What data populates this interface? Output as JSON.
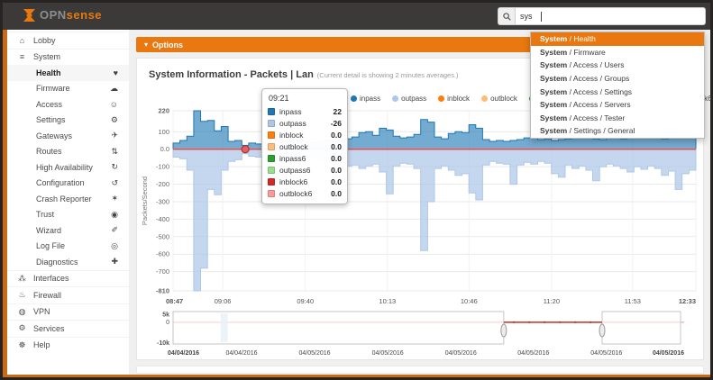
{
  "topbar": {
    "brand_prefix": "OPN",
    "brand_suffix": "sense",
    "search": {
      "value": "sys"
    }
  },
  "sidebar": {
    "sections": [
      {
        "type": "top",
        "items": [
          {
            "label": "Lobby",
            "icon": "laptop-icon",
            "glyph": "⌂"
          },
          {
            "label": "System",
            "icon": "list-icon",
            "glyph": "≡"
          }
        ]
      },
      {
        "type": "sub",
        "items": [
          {
            "label": "Health",
            "icon": "heartbeat-icon",
            "glyph": "♥",
            "active": true
          },
          {
            "label": "Firmware",
            "icon": "cloud-icon",
            "glyph": "☁"
          },
          {
            "label": "Access",
            "icon": "users-icon",
            "glyph": "☺"
          },
          {
            "label": "Settings",
            "icon": "gears-icon",
            "glyph": "⚙"
          },
          {
            "label": "Gateways",
            "icon": "send-icon",
            "glyph": "✈"
          },
          {
            "label": "Routes",
            "icon": "road-icon",
            "glyph": "⇅"
          },
          {
            "label": "High Availability",
            "icon": "refresh-icon",
            "glyph": "↻"
          },
          {
            "label": "Configuration",
            "icon": "history-icon",
            "glyph": "↺"
          },
          {
            "label": "Crash Reporter",
            "icon": "bug-icon",
            "glyph": "✶"
          },
          {
            "label": "Trust",
            "icon": "certificate-icon",
            "glyph": "◉"
          },
          {
            "label": "Wizard",
            "icon": "wand-icon",
            "glyph": "✐"
          },
          {
            "label": "Log File",
            "icon": "eye-icon",
            "glyph": "◎"
          },
          {
            "label": "Diagnostics",
            "icon": "diagnostics-icon",
            "glyph": "✚"
          }
        ]
      },
      {
        "type": "top",
        "items": [
          {
            "label": "Interfaces",
            "icon": "sitemap-icon",
            "glyph": "⁂"
          },
          {
            "label": "Firewall",
            "icon": "fire-icon",
            "glyph": "♨"
          },
          {
            "label": "VPN",
            "icon": "globe-icon",
            "glyph": "◍"
          },
          {
            "label": "Services",
            "icon": "gear-icon",
            "glyph": "⚙"
          },
          {
            "label": "Help",
            "icon": "life-ring-icon",
            "glyph": "☸"
          }
        ]
      }
    ]
  },
  "search_dropdown": {
    "items": [
      {
        "bold": "System",
        "rest": " / Health",
        "selected": true
      },
      {
        "bold": "System",
        "rest": " / Firmware"
      },
      {
        "bold": "System",
        "rest": " / Access / Users"
      },
      {
        "bold": "System",
        "rest": " / Access / Groups"
      },
      {
        "bold": "System",
        "rest": " / Access / Settings"
      },
      {
        "bold": "System",
        "rest": " / Access / Servers"
      },
      {
        "bold": "System",
        "rest": " / Access / Tester"
      },
      {
        "bold": "System",
        "rest": " / Settings / General"
      }
    ]
  },
  "options_bar": {
    "label": "Options",
    "chevron": "▾"
  },
  "panel": {
    "title": "System Information - Packets | Lan",
    "subtitle": "(Current detail is showing 2 minutes averages.)"
  },
  "legend": [
    {
      "name": "inpass",
      "color": "#1f77b4"
    },
    {
      "name": "outpass",
      "color": "#aec7e8"
    },
    {
      "name": "inblock",
      "color": "#ff7f0e"
    },
    {
      "name": "outblock",
      "color": "#ffbb78"
    },
    {
      "name": "inpass6",
      "color": "#2ca02c"
    },
    {
      "name": "outpass6",
      "color": "#98df8a"
    },
    {
      "name": "inblock6",
      "color": "#d62728"
    },
    {
      "name": "outblock6",
      "color": "#ff9896"
    }
  ],
  "tooltip": {
    "time": "09:21",
    "rows": [
      {
        "name": "inpass",
        "value": "22",
        "color": "#1f77b4"
      },
      {
        "name": "outpass",
        "value": "-26",
        "color": "#aec7e8"
      },
      {
        "name": "inblock",
        "value": "0.0",
        "color": "#ff7f0e"
      },
      {
        "name": "outblock",
        "value": "0.0",
        "color": "#ffbb78"
      },
      {
        "name": "inpass6",
        "value": "0.0",
        "color": "#2ca02c"
      },
      {
        "name": "outpass6",
        "value": "0.0",
        "color": "#98df8a"
      },
      {
        "name": "inblock6",
        "value": "0.0",
        "color": "#d62728"
      },
      {
        "name": "outblock6",
        "value": "0.0",
        "color": "#ff9896"
      }
    ]
  },
  "chart_data": {
    "type": "area",
    "title": "System Information - Packets | Lan",
    "ylabel": "Packets/Second",
    "ylim": [
      -810,
      220
    ],
    "grid": true,
    "legend_position": "top-right",
    "yticks": [
      {
        "v": 220,
        "label": "220"
      },
      {
        "v": 100,
        "label": "100"
      },
      {
        "v": 0,
        "label": "0.0"
      },
      {
        "v": -100,
        "label": "-100"
      },
      {
        "v": -200,
        "label": "-200"
      },
      {
        "v": -300,
        "label": "-300"
      },
      {
        "v": -400,
        "label": "-400"
      },
      {
        "v": -500,
        "label": "-500"
      },
      {
        "v": -600,
        "label": "-600"
      },
      {
        "v": -700,
        "label": "-700"
      },
      {
        "v": -810,
        "label": "-810"
      }
    ],
    "xticks": [
      {
        "pct": 0,
        "label": "08:47"
      },
      {
        "pct": 9.5,
        "label": "09:06"
      },
      {
        "pct": 25.3,
        "label": "09:40"
      },
      {
        "pct": 41.0,
        "label": "10:13"
      },
      {
        "pct": 56.6,
        "label": "10:46"
      },
      {
        "pct": 72.4,
        "label": "11:20"
      },
      {
        "pct": 87.9,
        "label": "11:53"
      },
      {
        "pct": 100,
        "label": "12:33"
      }
    ],
    "series": [
      {
        "name": "inpass",
        "color": "#1f77b4",
        "values": [
          35,
          50,
          75,
          220,
          160,
          165,
          105,
          130,
          45,
          50,
          22,
          35,
          30,
          40,
          45,
          50,
          45,
          55,
          50,
          45,
          40,
          45,
          50,
          45,
          55,
          60,
          70,
          95,
          100,
          80,
          120,
          110,
          75,
          65,
          70,
          85,
          170,
          155,
          70,
          60,
          90,
          100,
          95,
          140,
          120,
          55,
          45,
          50,
          45,
          50,
          55,
          65,
          70,
          55,
          60,
          50,
          55,
          60,
          70,
          65,
          75,
          60,
          55,
          65,
          70,
          60,
          75,
          70,
          80,
          65,
          70,
          60,
          75,
          70,
          85,
          100
        ]
      },
      {
        "name": "outpass",
        "color": "#aec7e8",
        "values": [
          -45,
          -55,
          -120,
          -810,
          -680,
          -230,
          -260,
          -120,
          -70,
          -60,
          -26,
          -40,
          -45,
          -60,
          -55,
          -70,
          -65,
          -75,
          -60,
          -55,
          -50,
          -65,
          -90,
          -70,
          -80,
          -95,
          -90,
          -110,
          -95,
          -85,
          -130,
          -255,
          -95,
          -80,
          -85,
          -110,
          -580,
          -300,
          -110,
          -95,
          -120,
          -150,
          -140,
          -250,
          -290,
          -90,
          -70,
          -80,
          -85,
          -200,
          -90,
          -75,
          -85,
          -70,
          -80,
          -140,
          -160,
          -90,
          -110,
          -95,
          -120,
          -180,
          -100,
          -85,
          -95,
          -110,
          -130,
          -100,
          -115,
          -95,
          -110,
          -150,
          -125,
          -230,
          -140,
          -120
        ]
      }
    ],
    "zero_series": [
      "inblock",
      "outblock",
      "inpass6",
      "outpass6",
      "inblock6",
      "outblock6"
    ],
    "zero_line_colors": [
      "#d62728",
      "#ff9896"
    ],
    "hover": {
      "index": 10,
      "time": "09:21"
    }
  },
  "minichart": {
    "yticks": [
      {
        "pct": 8,
        "label": "5k",
        "bold": true
      },
      {
        "pct": 33,
        "label": "0"
      },
      {
        "pct": 100,
        "label": "-10k",
        "bold": true
      }
    ],
    "xticks": [
      {
        "pct": 0,
        "label": "04/04/2016",
        "bold": true
      },
      {
        "pct": 13.4,
        "label": "04/04/2016"
      },
      {
        "pct": 27.7,
        "label": "04/05/2016"
      },
      {
        "pct": 42.0,
        "label": "04/05/2016"
      },
      {
        "pct": 56.3,
        "label": "04/05/2016"
      },
      {
        "pct": 70.5,
        "label": "04/05/2016"
      },
      {
        "pct": 84.8,
        "label": "04/05/2016"
      },
      {
        "pct": 100,
        "label": "04/05/2016",
        "bold": true
      }
    ],
    "zero_pct": 33,
    "brush": {
      "start_pct": 64.7,
      "end_pct": 83.95,
      "right_mask_end_pct": 99.3
    },
    "band": {
      "pct": 9.3,
      "width_pct": 1.4,
      "color": "#cfe0ef"
    },
    "line_color": "#c0392b",
    "faint_line_color": "#eeb8b8"
  },
  "colors": {
    "accent": "#e8780f",
    "topbar": "#3b3a39",
    "body": "#c96a15"
  }
}
